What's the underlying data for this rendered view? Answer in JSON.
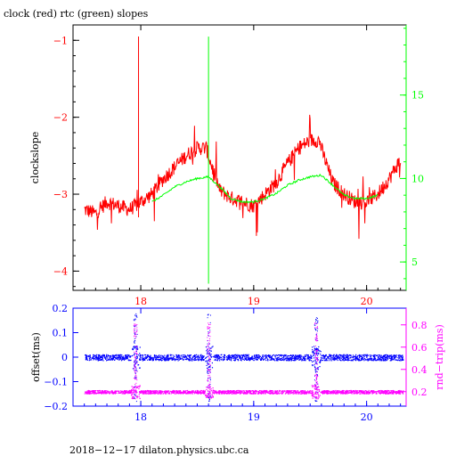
{
  "chart_data": [
    {
      "type": "line",
      "title": "clock (red) rtc (green) slopes",
      "xlabel": "",
      "ylabel": "clockslope",
      "xlim": [
        17.4,
        20.35
      ],
      "ylim": [
        -4.25,
        -0.8
      ],
      "y2lim": [
        3.3,
        19.2
      ],
      "xticks": [
        18,
        19,
        20
      ],
      "yticks": [
        -1,
        -2,
        -3,
        -4
      ],
      "y2ticks": [
        5,
        10,
        15
      ],
      "colors": {
        "clock": "#ff0000",
        "rtc": "#00ff00",
        "axes": "#000000",
        "y2axis": "#00ff00",
        "xticks": "#ff0000",
        "yticks": "#ff0000"
      },
      "series": [
        {
          "key": "clock",
          "axis": "left",
          "x": [
            17.5,
            17.6,
            17.7,
            17.8,
            17.9,
            18.0,
            18.1,
            18.2,
            18.3,
            18.4,
            18.5,
            18.58,
            18.62,
            18.7,
            18.8,
            18.9,
            19.0,
            19.1,
            19.2,
            19.3,
            19.4,
            19.5,
            19.58,
            19.62,
            19.7,
            19.8,
            19.9,
            20.0,
            20.1,
            20.2,
            20.3
          ],
          "y": [
            -3.2,
            -3.25,
            -3.1,
            -3.15,
            -3.2,
            -3.1,
            -3.0,
            -2.8,
            -2.65,
            -2.5,
            -2.4,
            -2.4,
            -2.6,
            -2.95,
            -3.05,
            -3.1,
            -3.15,
            -3.0,
            -2.85,
            -2.6,
            -2.4,
            -2.3,
            -2.3,
            -2.5,
            -2.85,
            -3.0,
            -3.1,
            -3.1,
            -3.0,
            -2.8,
            -2.55
          ]
        },
        {
          "key": "rtc",
          "axis": "right",
          "x": [
            18.1,
            18.2,
            18.3,
            18.4,
            18.5,
            18.6,
            18.7,
            18.8,
            18.9,
            19.0,
            19.1,
            19.2,
            19.3,
            19.4,
            19.5,
            19.6,
            19.7,
            19.8,
            19.9,
            20.0,
            20.1
          ],
          "y": [
            8.6,
            9.0,
            9.5,
            9.8,
            10.0,
            10.1,
            9.5,
            8.8,
            8.6,
            8.6,
            8.8,
            9.1,
            9.6,
            9.9,
            10.1,
            10.2,
            9.6,
            9.0,
            8.8,
            8.8,
            9.0
          ]
        }
      ],
      "spikes": [
        {
          "x": 17.98,
          "from": -3.3,
          "to": -0.95,
          "axis": "left",
          "key": "clock"
        },
        {
          "x": 18.6,
          "from": 10.0,
          "to": 18.5,
          "axis": "right",
          "key": "rtc"
        },
        {
          "x": 18.6,
          "from": 10.0,
          "to": 3.7,
          "axis": "right",
          "key": "rtc"
        }
      ]
    },
    {
      "type": "scatter",
      "title": "",
      "xlabel": "",
      "ylabel": "offset(ms)",
      "y2label": "rnd−trip(ms)",
      "xlim": [
        17.4,
        20.35
      ],
      "ylim": [
        -0.2,
        0.2
      ],
      "y2lim": [
        0.07,
        0.95
      ],
      "xticks": [
        18,
        19,
        20
      ],
      "yticks": [
        0.2,
        0.1,
        0,
        -0.1,
        -0.2
      ],
      "y2ticks": [
        0.8,
        0.6,
        0.4,
        0.2
      ],
      "colors": {
        "offset": "#0000ff",
        "rndtrip": "#ff00ff",
        "axes": "#0000ff",
        "y2axis": "#ff00ff"
      },
      "series": [
        {
          "key": "offset",
          "axis": "left",
          "xrange": [
            17.5,
            20.32
          ],
          "level": 0.0,
          "spread": 0.012
        },
        {
          "key": "rndtrip",
          "axis": "right",
          "xrange": [
            17.5,
            20.32
          ],
          "level": 0.2,
          "spread": 0.015
        }
      ],
      "bursts": [
        17.95,
        18.6,
        19.55
      ]
    }
  ],
  "footer": "2018−12−17  dilaton.physics.ubc.ca"
}
